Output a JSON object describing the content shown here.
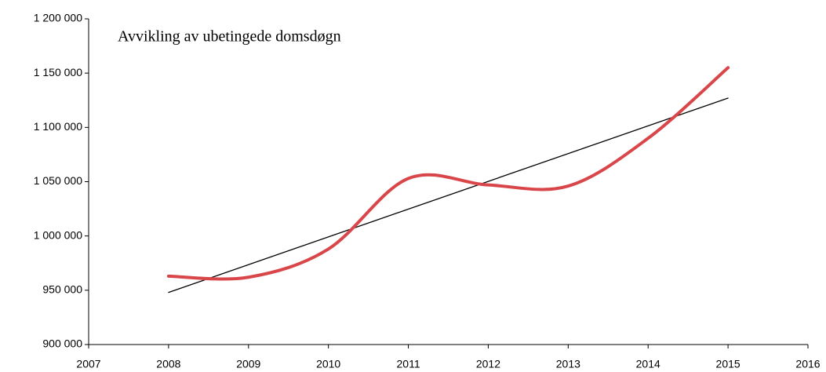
{
  "chart_data": {
    "type": "line",
    "title": "Avvikling av ubetingede domsdøgn",
    "x": [
      2008,
      2009,
      2010,
      2011,
      2012,
      2013,
      2014,
      2015
    ],
    "series": [
      {
        "color": "#d9464a",
        "values": [
          963000,
          962000,
          988000,
          1053000,
          1047000,
          1046000,
          1090000,
          1155000
        ]
      }
    ],
    "trendline": {
      "x": [
        2008,
        2015
      ],
      "values": [
        948000,
        1127000
      ],
      "color": "#000000"
    },
    "xlim": [
      2007,
      2016
    ],
    "xticks": [
      2007,
      2008,
      2009,
      2010,
      2011,
      2012,
      2013,
      2014,
      2015,
      2016
    ],
    "ylim": [
      900000,
      1200000
    ],
    "yticks": [
      {
        "value": 900000,
        "label": "900 000"
      },
      {
        "value": 950000,
        "label": "950 000"
      },
      {
        "value": 1000000,
        "label": "1 000 000"
      },
      {
        "value": 1050000,
        "label": "1 050 000"
      },
      {
        "value": 1100000,
        "label": "1 100 000"
      },
      {
        "value": 1150000,
        "label": "1 150 000"
      },
      {
        "value": 1200000,
        "label": "1 200 000"
      }
    ],
    "grid": false,
    "smooth": true
  }
}
